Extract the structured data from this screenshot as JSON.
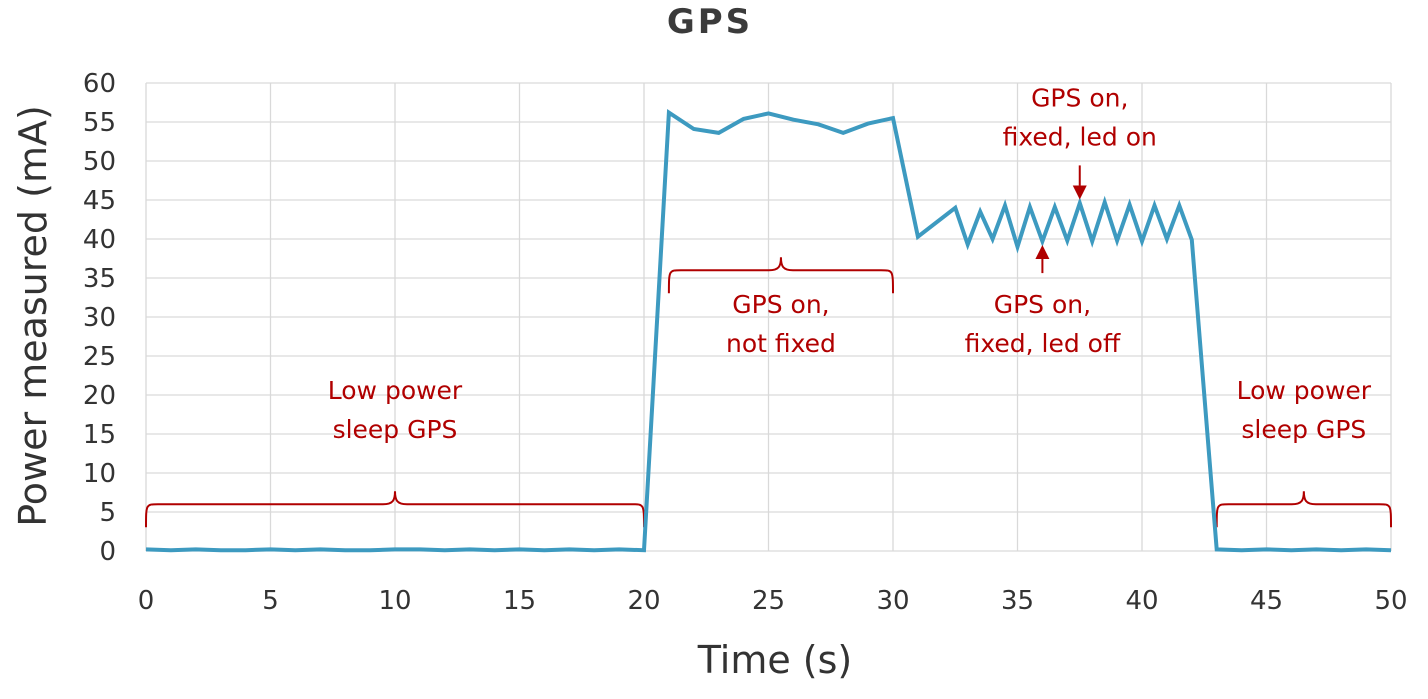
{
  "chart_data": {
    "type": "line",
    "title": "GPS",
    "xlabel": "Time (s)",
    "ylabel": "Power measured (mA)",
    "xlim": [
      0,
      50
    ],
    "ylim": [
      0,
      60
    ],
    "xticks": [
      0,
      5,
      10,
      15,
      20,
      25,
      30,
      35,
      40,
      45,
      50
    ],
    "yticks": [
      0,
      5,
      10,
      15,
      20,
      25,
      30,
      35,
      40,
      45,
      50,
      55,
      60
    ],
    "grid": true,
    "colors": {
      "series": "#3d9ac0",
      "annotation": "#b00000"
    },
    "series": [
      {
        "x": [
          0,
          1,
          2,
          3,
          4,
          5,
          6,
          7,
          8,
          9,
          10,
          11,
          12,
          13,
          14,
          15,
          16,
          17,
          18,
          19,
          20,
          21,
          22,
          23,
          24,
          25,
          26,
          27,
          28,
          29,
          30,
          31,
          32.5,
          33,
          33.5,
          34,
          34.5,
          35,
          35.5,
          36,
          36.5,
          37,
          37.5,
          38,
          38.5,
          39,
          39.5,
          40,
          40.5,
          41,
          41.5,
          42,
          43,
          44,
          45,
          46,
          47,
          48,
          49,
          50
        ],
        "y": [
          0.2,
          0.1,
          0.2,
          0.1,
          0.1,
          0.2,
          0.1,
          0.2,
          0.1,
          0.1,
          0.2,
          0.2,
          0.1,
          0.2,
          0.1,
          0.2,
          0.1,
          0.2,
          0.1,
          0.2,
          0.1,
          56.2,
          54.1,
          53.6,
          55.4,
          56.1,
          55.3,
          54.7,
          53.6,
          54.8,
          55.5,
          40.3,
          44,
          39.3,
          43.5,
          40,
          44.3,
          39,
          44.1,
          39.7,
          44.1,
          39.8,
          44.6,
          39.7,
          44.7,
          39.8,
          44.4,
          39.7,
          44.3,
          40,
          44.3,
          39.9,
          0.2,
          0.1,
          0.2,
          0.1,
          0.2,
          0.1,
          0.2,
          0.1
        ]
      }
    ],
    "annotations": [
      {
        "lines": [
          "Low power",
          "sleep GPS"
        ],
        "x": 10,
        "y": 19.5,
        "brace": [
          0,
          20
        ],
        "brace_y": 6
      },
      {
        "lines": [
          "GPS on,",
          "not fixed"
        ],
        "x": 25.5,
        "y": 30.5,
        "brace": [
          21,
          30
        ],
        "brace_y": 36
      },
      {
        "lines": [
          "GPS on,",
          "fixed, led off"
        ],
        "x": 36,
        "y": 30.5,
        "arrow_to": [
          36,
          40
        ]
      },
      {
        "lines": [
          "GPS on,",
          "fixed, led on"
        ],
        "x": 37.5,
        "y": 57,
        "arrow_to": [
          37.5,
          44.3
        ]
      },
      {
        "lines": [
          "Low power",
          "sleep GPS"
        ],
        "x": 46.5,
        "y": 19.5,
        "brace": [
          43,
          50
        ],
        "brace_y": 6
      }
    ]
  }
}
